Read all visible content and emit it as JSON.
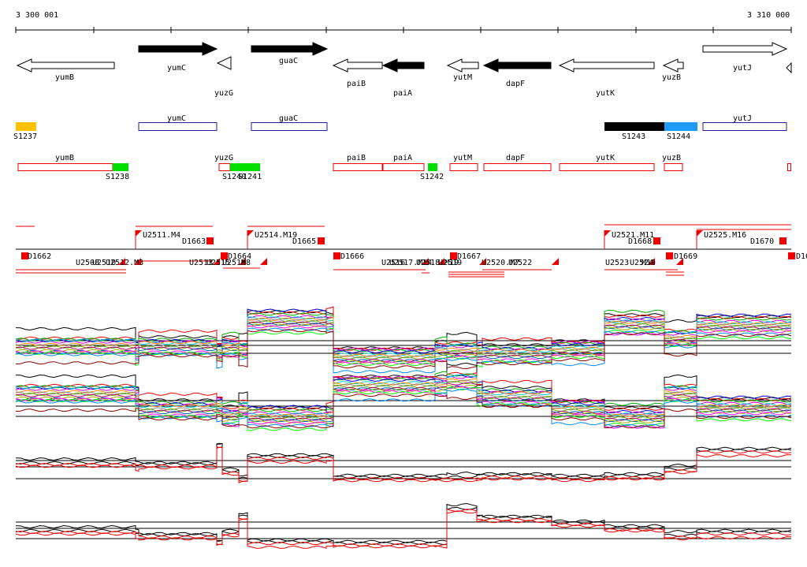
{
  "coordinates": {
    "start_label": "3 300 001",
    "end_label": "3 310 000"
  },
  "genes": [
    {
      "name": "yumB",
      "strand": "-",
      "filled": false
    },
    {
      "name": "yumC",
      "strand": "+",
      "filled": true
    },
    {
      "name": "yuzG",
      "strand": "-",
      "filled": false
    },
    {
      "name": "guaC",
      "strand": "+",
      "filled": true
    },
    {
      "name": "paiB",
      "strand": "-",
      "filled": false
    },
    {
      "name": "paiA",
      "strand": "-",
      "filled": true
    },
    {
      "name": "yutM",
      "strand": "-",
      "filled": false
    },
    {
      "name": "dapF",
      "strand": "-",
      "filled": true
    },
    {
      "name": "yutK",
      "strand": "-",
      "filled": false
    },
    {
      "name": "yuzB",
      "strand": "-",
      "filled": false
    },
    {
      "name": "yutJ",
      "strand": "+",
      "filled": false
    }
  ],
  "segments_top": [
    {
      "label": "S1237",
      "color": "#ffc000"
    },
    {
      "label": "yumC",
      "color": "#2020a0"
    },
    {
      "label": "guaC",
      "color": "#2020a0"
    },
    {
      "label": "S1243",
      "color": "#000000"
    },
    {
      "label": "S1244",
      "color": "#1e9bff"
    },
    {
      "label": "yutJ",
      "color": "#2020a0"
    }
  ],
  "segments_bottom": [
    {
      "label": "yumB"
    },
    {
      "label": "S1238"
    },
    {
      "label": "yuzG"
    },
    {
      "label": "S1240"
    },
    {
      "label": "S1241"
    },
    {
      "label": "paiB"
    },
    {
      "label": "paiA"
    },
    {
      "label": "S1242"
    },
    {
      "label": "yutM"
    },
    {
      "label": "dapF"
    },
    {
      "label": "yutK"
    },
    {
      "label": "yuzB"
    }
  ],
  "feature_colors": {
    "utr_fill": "#ee0000",
    "segment_green": "#00e000"
  },
  "upshift_labels": [
    "U2511.M4",
    "U2514.M19",
    "U2521.M11",
    "U2525.M16"
  ],
  "downshift_labels": [
    "D1662",
    "D1663",
    "D1664",
    "D1665",
    "D1666",
    "D1667",
    "D1668",
    "D1669",
    "D1670",
    "D16"
  ],
  "lower_labels": [
    "U2508",
    "U2510",
    "U2512.M3",
    "U2513",
    "U2515",
    "U2516",
    "M8",
    "U2516",
    "U2517.M14",
    "U2518.M19",
    "U2519",
    "U2520.M7",
    "U2522",
    "U2523",
    "U2524",
    "M19"
  ],
  "profiles": [
    {
      "name": "panel-1",
      "type": "multi-condition"
    },
    {
      "name": "panel-2",
      "type": "multi-condition"
    },
    {
      "name": "panel-3",
      "type": "replicates"
    },
    {
      "name": "panel-4",
      "type": "replicates"
    }
  ]
}
